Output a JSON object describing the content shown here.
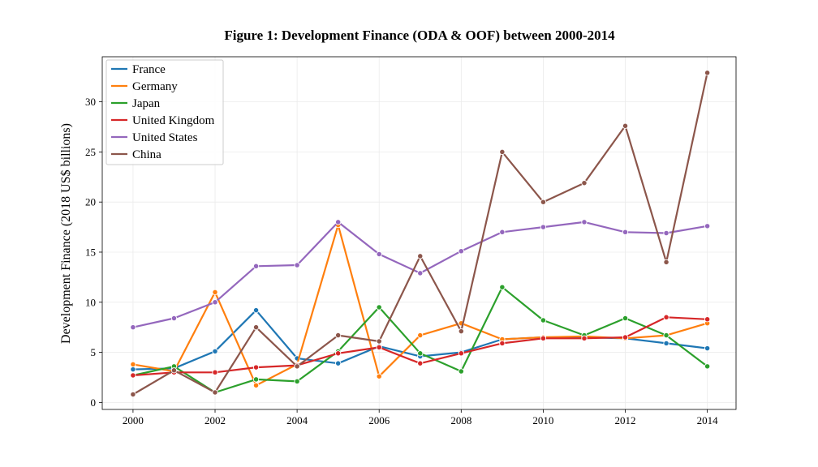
{
  "chart_data": {
    "type": "line",
    "title": "Figure 1: Development Finance (ODA & OOF) between 2000-2014",
    "xlabel": "",
    "ylabel": "Development Finance (2018 US$ billions)",
    "x": [
      2000,
      2001,
      2002,
      2003,
      2004,
      2005,
      2006,
      2007,
      2008,
      2009,
      2010,
      2011,
      2012,
      2013,
      2014
    ],
    "xlim": [
      1999.25,
      2014.7
    ],
    "ylim": [
      -0.7,
      34.5
    ],
    "xticks": [
      2000,
      2002,
      2004,
      2006,
      2008,
      2010,
      2012,
      2014
    ],
    "yticks": [
      0,
      5,
      10,
      15,
      20,
      25,
      30
    ],
    "grid": true,
    "legend_position": "top-left",
    "series": [
      {
        "name": "France",
        "color": "#1f77b4",
        "values": [
          3.3,
          3.4,
          5.1,
          9.2,
          4.4,
          3.9,
          5.6,
          4.6,
          5.0,
          6.3,
          6.5,
          6.5,
          6.4,
          5.9,
          5.4
        ]
      },
      {
        "name": "Germany",
        "color": "#ff7f0e",
        "values": [
          3.8,
          3.1,
          11.0,
          1.7,
          3.8,
          17.7,
          2.6,
          6.7,
          7.9,
          6.3,
          6.5,
          6.6,
          6.4,
          6.7,
          7.9
        ]
      },
      {
        "name": "Japan",
        "color": "#2ca02c",
        "values": [
          2.7,
          3.6,
          1.0,
          2.3,
          2.1,
          5.1,
          9.5,
          4.9,
          3.1,
          11.5,
          8.2,
          6.7,
          8.4,
          6.7,
          3.6
        ]
      },
      {
        "name": "United Kingdom",
        "color": "#d62728",
        "values": [
          2.7,
          3.0,
          3.0,
          3.5,
          3.7,
          4.9,
          5.5,
          3.9,
          4.9,
          5.9,
          6.4,
          6.4,
          6.5,
          8.5,
          8.3
        ]
      },
      {
        "name": "United States",
        "color": "#9467bd",
        "values": [
          7.5,
          8.4,
          10.0,
          13.6,
          13.7,
          18.0,
          14.8,
          12.9,
          15.1,
          17.0,
          17.5,
          18.0,
          17.0,
          16.9,
          17.6
        ]
      },
      {
        "name": "China",
        "color": "#8c564b",
        "values": [
          0.8,
          3.2,
          1.0,
          7.5,
          3.6,
          6.7,
          6.1,
          14.6,
          7.1,
          25.0,
          20.0,
          21.9,
          27.6,
          14.0,
          32.9
        ]
      }
    ]
  }
}
